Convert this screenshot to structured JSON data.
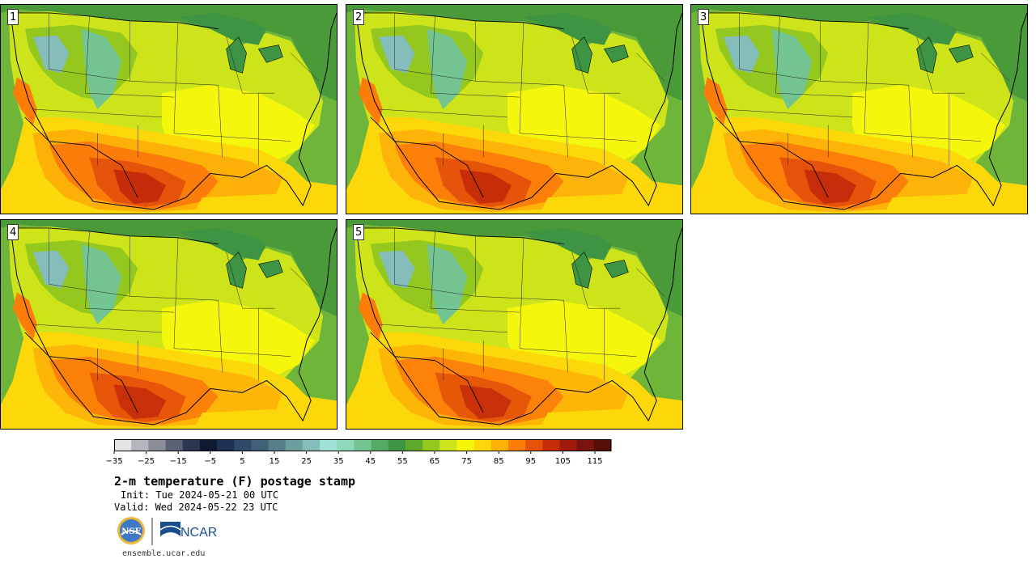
{
  "panels": [
    {
      "label": "1",
      "heat": 1.0
    },
    {
      "label": "2",
      "heat": 0.9
    },
    {
      "label": "3",
      "heat": 0.95
    },
    {
      "label": "4",
      "heat": 0.85
    },
    {
      "label": "5",
      "heat": 0.8
    }
  ],
  "colorbar": {
    "ticks": [
      "−35",
      "−25",
      "−15",
      "−5",
      "5",
      "15",
      "25",
      "35",
      "45",
      "55",
      "65",
      "75",
      "85",
      "95",
      "105",
      "115"
    ],
    "colors": [
      "#e3e4e6",
      "#b3b6bd",
      "#8a8e99",
      "#5c6276",
      "#2b3650",
      "#0d1a30",
      "#1d3250",
      "#2e4a68",
      "#3f6178",
      "#567f89",
      "#6b9e9f",
      "#84bdb9",
      "#9fe3d5",
      "#8fd8ba",
      "#73c491",
      "#55ab66",
      "#3d9442",
      "#5faa2e",
      "#94c81f",
      "#cde41a",
      "#f4f70c",
      "#fcd80a",
      "#fdb107",
      "#fc7d0a",
      "#e55209",
      "#c52d0a",
      "#a11b0c",
      "#7b130d",
      "#561007"
    ]
  },
  "title": "2-m temperature (F) postage stamp",
  "init": "Init: Tue 2024-05-21 00 UTC",
  "valid": "Valid: Wed 2024-05-22 23 UTC",
  "logos": {
    "nsf": "NSF",
    "ncar": "NCAR"
  },
  "website": "ensemble.ucar.edu"
}
